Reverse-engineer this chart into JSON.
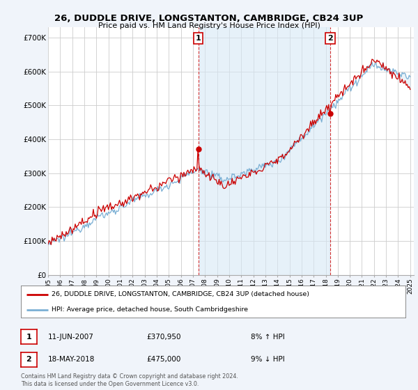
{
  "title": "26, DUDDLE DRIVE, LONGSTANTON, CAMBRIDGE, CB24 3UP",
  "subtitle": "Price paid vs. HM Land Registry's House Price Index (HPI)",
  "ylim": [
    0,
    730000
  ],
  "yticks": [
    0,
    100000,
    200000,
    300000,
    400000,
    500000,
    600000,
    700000
  ],
  "ytick_labels": [
    "£0",
    "£100K",
    "£200K",
    "£300K",
    "£400K",
    "£500K",
    "£600K",
    "£700K"
  ],
  "line1_color": "#cc0000",
  "line2_color": "#7aafd4",
  "fill_color": "#d6e8f5",
  "line1_label": "26, DUDDLE DRIVE, LONGSTANTON, CAMBRIDGE, CB24 3UP (detached house)",
  "line2_label": "HPI: Average price, detached house, South Cambridgeshire",
  "footer": "Contains HM Land Registry data © Crown copyright and database right 2024.\nThis data is licensed under the Open Government Licence v3.0.",
  "background_color": "#f0f4fa",
  "plot_bg_color": "#ffffff",
  "grid_color": "#cccccc",
  "x_start_year": 1995,
  "x_end_year": 2025,
  "sale1_year": 2007.44,
  "sale1_price": 370950,
  "sale2_year": 2018.37,
  "sale2_price": 475000
}
